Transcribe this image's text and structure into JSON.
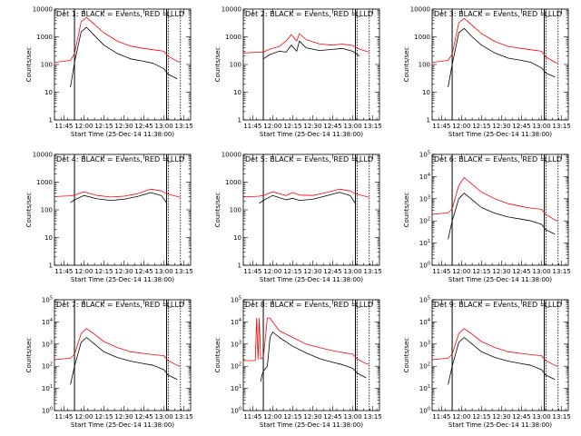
{
  "colors": {
    "events": "#000000",
    "lld": "#ff0000",
    "background": "#ffffff"
  },
  "chart_data": {
    "type": "line",
    "layout": "3x3 grid",
    "x_unit": "time (UT, 25-Dec-14)",
    "xlim": [
      "11:38",
      "13:20"
    ],
    "xticks": [
      "11:45",
      "12:00",
      "12:15",
      "12:30",
      "12:45",
      "13:00",
      "13:15"
    ],
    "y_scale": "log",
    "ylabel": "Counts/sec",
    "xlabel": "Start Time (25-Dec-14 11:38:00)",
    "markers": {
      "solid": [
        "11:53",
        "13:02"
      ],
      "dotted": [
        "13:02",
        "13:11"
      ],
      "L_label_at": "13:03"
    },
    "panels": [
      {
        "title": "Det 1: BLACK = Events, RED = LLD",
        "ylim": [
          1,
          10000
        ],
        "yfmt": "dec",
        "x": [
          "11:38",
          "11:50",
          "11:53",
          "11:58",
          "12:02",
          "12:08",
          "12:15",
          "12:25",
          "12:35",
          "12:45",
          "12:52",
          "13:00",
          "13:03",
          "13:10",
          "13:12"
        ],
        "events": [
          null,
          15,
          120,
          1500,
          2200,
          1100,
          500,
          250,
          160,
          130,
          110,
          70,
          45,
          30,
          null
        ],
        "lld": [
          120,
          140,
          250,
          3500,
          5000,
          2800,
          1400,
          700,
          460,
          380,
          340,
          300,
          200,
          130,
          120
        ]
      },
      {
        "title": "Det 2: BLACK = Events, RED = LLD",
        "ylim": [
          1,
          10000
        ],
        "yfmt": "dec",
        "x": [
          "11:38",
          "11:53",
          "11:58",
          "12:05",
          "12:10",
          "12:14",
          "12:18",
          "12:20",
          "12:25",
          "12:35",
          "12:45",
          "12:52",
          "13:00",
          "13:05",
          "13:12"
        ],
        "events": [
          null,
          160,
          230,
          300,
          280,
          500,
          300,
          700,
          400,
          320,
          350,
          380,
          300,
          200,
          null
        ],
        "lld": [
          260,
          280,
          360,
          450,
          700,
          1200,
          700,
          1300,
          800,
          550,
          500,
          550,
          480,
          360,
          280
        ]
      },
      {
        "title": "Det 3: BLACK = Events, RED = LLD",
        "ylim": [
          1,
          10000
        ],
        "yfmt": "dec",
        "x": [
          "11:38",
          "11:50",
          "11:53",
          "11:58",
          "12:02",
          "12:08",
          "12:15",
          "12:25",
          "12:35",
          "12:45",
          "12:52",
          "13:00",
          "13:03",
          "13:10",
          "13:12"
        ],
        "events": [
          null,
          15,
          100,
          1400,
          2000,
          1000,
          500,
          260,
          170,
          140,
          120,
          75,
          50,
          35,
          null
        ],
        "lld": [
          120,
          140,
          240,
          3200,
          4600,
          2600,
          1300,
          680,
          450,
          380,
          340,
          300,
          190,
          120,
          110
        ]
      },
      {
        "title": "Det 4: BLACK = Events, RED = LLD",
        "ylim": [
          1,
          10000
        ],
        "yfmt": "dec",
        "x": [
          "11:38",
          "11:50",
          "11:53",
          "12:00",
          "12:10",
          "12:20",
          "12:30",
          "12:40",
          "12:50",
          "12:58",
          "13:02",
          "13:10",
          "13:12"
        ],
        "events": [
          null,
          180,
          230,
          330,
          250,
          220,
          240,
          300,
          420,
          330,
          180,
          null,
          null
        ],
        "lld": [
          300,
          320,
          340,
          450,
          330,
          290,
          310,
          380,
          560,
          480,
          380,
          300,
          280
        ]
      },
      {
        "title": "Det 5: BLACK = Events, RED = LLD",
        "ylim": [
          1,
          10000
        ],
        "yfmt": "dec",
        "x": [
          "11:38",
          "11:50",
          "11:53",
          "12:00",
          "12:10",
          "12:15",
          "12:20",
          "12:30",
          "12:40",
          "12:50",
          "12:58",
          "13:02",
          "13:10",
          "13:12"
        ],
        "events": [
          null,
          170,
          220,
          330,
          230,
          260,
          220,
          240,
          320,
          430,
          330,
          170,
          null,
          null
        ],
        "lld": [
          290,
          310,
          330,
          450,
          330,
          420,
          340,
          330,
          420,
          560,
          480,
          380,
          300,
          280
        ]
      },
      {
        "title": "Det 6: BLACK = Events, RED = LLD",
        "ylim": [
          1,
          100000
        ],
        "yfmt": "exp",
        "x": [
          "11:38",
          "11:50",
          "11:53",
          "11:58",
          "12:02",
          "12:08",
          "12:15",
          "12:25",
          "12:35",
          "12:45",
          "12:52",
          "13:00",
          "13:03",
          "13:10",
          "13:12"
        ],
        "events": [
          null,
          15,
          100,
          1000,
          1800,
          900,
          400,
          220,
          150,
          120,
          100,
          70,
          40,
          25,
          null
        ],
        "lld": [
          200,
          230,
          350,
          4000,
          9000,
          4500,
          2000,
          1000,
          600,
          450,
          380,
          330,
          200,
          110,
          100
        ]
      },
      {
        "title": "Det 7: BLACK = Events, RED = LLD",
        "ylim": [
          1,
          100000
        ],
        "yfmt": "exp",
        "x": [
          "11:38",
          "11:50",
          "11:53",
          "11:58",
          "12:02",
          "12:08",
          "12:15",
          "12:25",
          "12:35",
          "12:45",
          "12:52",
          "13:00",
          "13:03",
          "13:10",
          "13:12"
        ],
        "events": [
          null,
          15,
          100,
          1200,
          2000,
          1000,
          450,
          250,
          170,
          130,
          110,
          70,
          40,
          25,
          null
        ],
        "lld": [
          200,
          230,
          350,
          3000,
          5000,
          2800,
          1300,
          700,
          450,
          380,
          330,
          300,
          180,
          110,
          100
        ]
      },
      {
        "title": "Det 8: BLACK = Events, RED = LLD",
        "ylim": [
          1,
          100000
        ],
        "yfmt": "exp",
        "x": [
          "11:38",
          "11:47",
          "11:48",
          "11:49",
          "11:50",
          "11:51",
          "11:52",
          "11:53",
          "11:56",
          "11:57",
          "11:58",
          "12:00",
          "12:05",
          "12:15",
          "12:25",
          "12:35",
          "12:45",
          "12:52",
          "13:00",
          "13:03",
          "13:10",
          "13:12"
        ],
        "events": [
          null,
          null,
          10,
          null,
          null,
          20,
          40,
          60,
          100,
          400,
          2000,
          3500,
          2000,
          800,
          400,
          220,
          150,
          120,
          80,
          50,
          30,
          null
        ],
        "lld": [
          180,
          180,
          15000,
          200,
          15000,
          220,
          230,
          250,
          15000,
          15000,
          15000,
          10000,
          4000,
          2000,
          1000,
          700,
          500,
          420,
          350,
          220,
          130,
          120
        ]
      },
      {
        "title": "Det 9: BLACK = Events, RED = LLD",
        "ylim": [
          1,
          100000
        ],
        "yfmt": "exp",
        "x": [
          "11:38",
          "11:50",
          "11:53",
          "11:58",
          "12:02",
          "12:08",
          "12:15",
          "12:25",
          "12:35",
          "12:45",
          "12:52",
          "13:00",
          "13:03",
          "13:10",
          "13:12"
        ],
        "events": [
          null,
          15,
          100,
          1200,
          2000,
          1000,
          450,
          250,
          170,
          130,
          110,
          70,
          40,
          25,
          null
        ],
        "lld": [
          200,
          230,
          350,
          3000,
          5000,
          2800,
          1300,
          700,
          450,
          380,
          330,
          300,
          180,
          110,
          100
        ]
      }
    ]
  }
}
